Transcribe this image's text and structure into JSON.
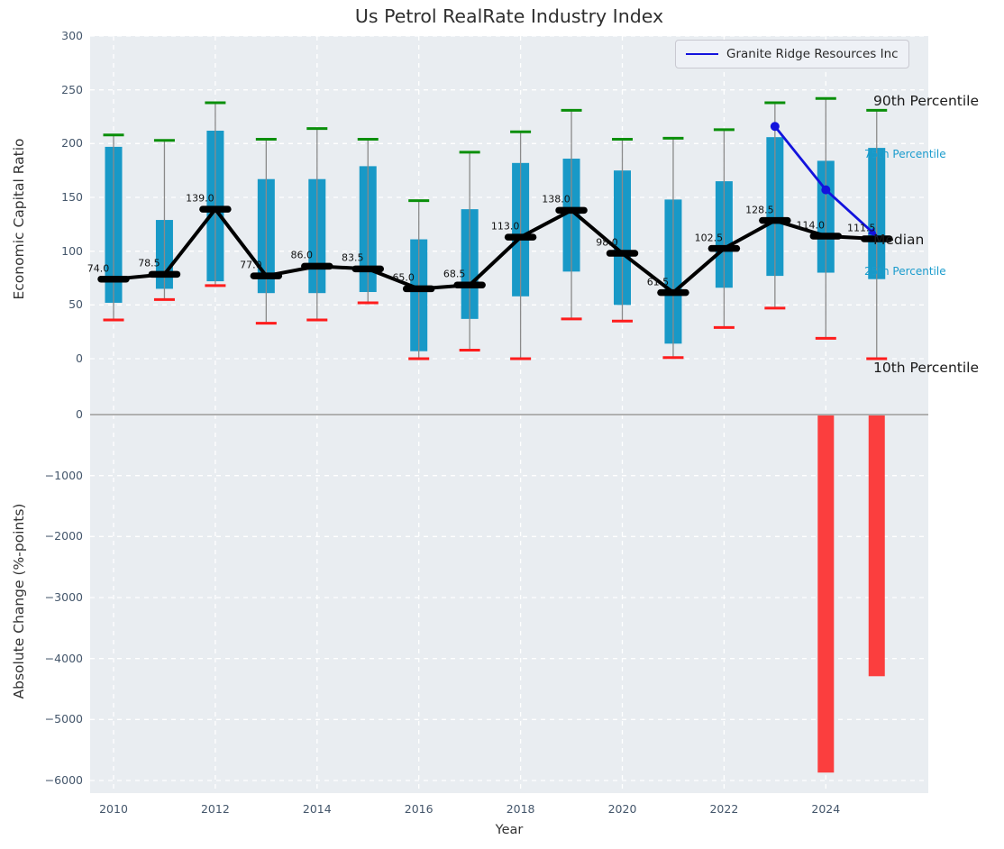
{
  "title": "Us Petrol RealRate Industry Index",
  "legend": {
    "items": [
      {
        "label": "Granite Ridge Resources Inc"
      }
    ]
  },
  "colors": {
    "axes_bg": "#e9edf1",
    "grid": "#ffffff",
    "box": "#1899c7",
    "whisker": "#8a8a8a",
    "cap_90th": "#0a8f0a",
    "cap_10th": "#fe1c1c",
    "median_line": "#000000",
    "company_line": "#1313dd",
    "bar_negative": "#fb3e3e",
    "zero_line": "#b0b0b0",
    "tick_label": "#44566b",
    "annotation_cyan": "#1b9ccd",
    "annotation_black": "#1a1a1a"
  },
  "chart_data": [
    {
      "type": "box",
      "title": "Us Petrol RealRate Industry Index",
      "ylabel": "Economic Capital Ratio",
      "ylim": [
        -48,
        300
      ],
      "yticks": [
        0,
        50,
        100,
        150,
        200,
        250,
        300
      ],
      "grid": true,
      "legend_position": "upper right",
      "years": [
        2010,
        2011,
        2012,
        2013,
        2014,
        2015,
        2016,
        2017,
        2018,
        2019,
        2020,
        2021,
        2022,
        2023,
        2024,
        2025
      ],
      "p10": [
        36,
        55,
        68,
        33,
        36,
        52,
        0,
        8,
        0,
        37,
        35,
        1,
        29,
        47,
        19,
        0
      ],
      "p25": [
        52,
        65,
        72,
        61,
        61,
        62,
        7,
        37,
        58,
        81,
        50,
        14,
        66,
        77,
        80,
        74
      ],
      "median": [
        74,
        78.5,
        139,
        77,
        86,
        83.5,
        65,
        68.5,
        113,
        138,
        98,
        61.5,
        102.5,
        128.5,
        114,
        111.5
      ],
      "p75": [
        197,
        129,
        212,
        167,
        167,
        179,
        111,
        139,
        182,
        186,
        175,
        148,
        165,
        206,
        184,
        196
      ],
      "p90": [
        208,
        203,
        238,
        204,
        214,
        204,
        147,
        192,
        211,
        231,
        204,
        205,
        213,
        238,
        242,
        231
      ],
      "median_labels": [
        "74.0",
        "78.5",
        "139.0",
        "77.0",
        "86.0",
        "83.5",
        "65.0",
        "68.5",
        "113.0",
        "138.0",
        "98.0",
        "61.5",
        "102.5",
        "128.5",
        "114.0",
        "111.5"
      ],
      "overlay_series": {
        "name": "Granite Ridge Resources Inc",
        "x": [
          2023,
          2024,
          2025
        ],
        "y": [
          216,
          157,
          114
        ]
      },
      "annotations": [
        {
          "text": "90th Percentile",
          "value": 240,
          "size": "lg",
          "color": "#1a1a1a"
        },
        {
          "text": "75th Percentile",
          "value": 190,
          "size": "sm",
          "color": "#1b9ccd"
        },
        {
          "text": "Median",
          "value": 111,
          "size": "lg",
          "color": "#1a1a1a"
        },
        {
          "text": "25th Percentile",
          "value": 81,
          "size": "sm",
          "color": "#1b9ccd"
        },
        {
          "text": "10th Percentile",
          "value": -8,
          "size": "lg",
          "color": "#1a1a1a"
        }
      ]
    },
    {
      "type": "bar",
      "ylabel": "Absolute Change (%-points)",
      "xlabel": "Year",
      "ylim": [
        -6200,
        74
      ],
      "yticks": [
        0,
        -1000,
        -2000,
        -3000,
        -4000,
        -5000,
        -6000
      ],
      "xticks": [
        2010,
        2012,
        2014,
        2016,
        2018,
        2020,
        2022,
        2024
      ],
      "grid": true,
      "x": [
        2024,
        2025
      ],
      "values": [
        -5870,
        -4290
      ]
    }
  ]
}
